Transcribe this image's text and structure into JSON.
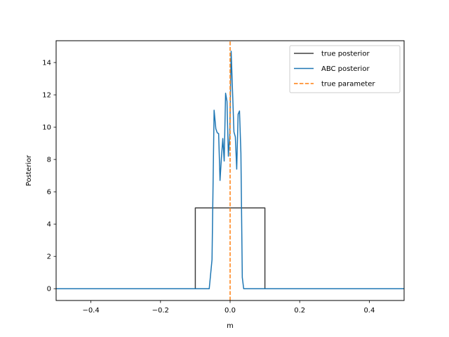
{
  "chart_data": {
    "type": "line",
    "xlabel": "m",
    "ylabel": "Posterior",
    "xlim": [
      -0.5,
      0.5
    ],
    "ylim": [
      -0.73,
      15.35
    ],
    "xticks": [
      -0.4,
      -0.2,
      0.0,
      0.2,
      0.4
    ],
    "xtick_labels": [
      "−0.4",
      "−0.2",
      "0.0",
      "0.2",
      "0.4"
    ],
    "yticks": [
      0,
      2,
      4,
      6,
      8,
      10,
      12,
      14
    ],
    "ytick_labels": [
      "0",
      "2",
      "4",
      "6",
      "8",
      "10",
      "12",
      "14"
    ],
    "grid": false,
    "legend_position": "top-right",
    "series": [
      {
        "name": "true posterior",
        "color": "#404040",
        "style": "solid",
        "x": [
          -0.5,
          -0.1,
          -0.1,
          0.1,
          0.1,
          0.5
        ],
        "y": [
          0,
          0,
          5,
          5,
          0,
          0
        ]
      },
      {
        "name": "ABC posterior",
        "color": "#1f77b4",
        "style": "solid",
        "x": [
          -0.5,
          -0.06,
          -0.052,
          -0.046,
          -0.041,
          -0.037,
          -0.033,
          -0.029,
          -0.025,
          -0.021,
          -0.017,
          -0.013,
          -0.009,
          -0.005,
          -0.001,
          0.003,
          0.007,
          0.011,
          0.015,
          0.019,
          0.023,
          0.027,
          0.031,
          0.035,
          0.039,
          0.043,
          0.047,
          0.052,
          0.058,
          0.5
        ],
        "y": [
          0,
          0,
          1.8,
          11.05,
          9.9,
          9.65,
          9.6,
          6.7,
          8.1,
          9.3,
          7.9,
          12.1,
          11.6,
          8.2,
          9.5,
          14.7,
          12.2,
          9.7,
          9.4,
          7.4,
          10.8,
          11.0,
          8.4,
          0.7,
          0.0,
          0.0,
          0.0,
          0.0,
          0.0,
          0.0
        ]
      },
      {
        "name": "true parameter",
        "color": "#ff7f0e",
        "style": "dashed",
        "x": [
          0.0,
          0.0
        ],
        "y": [
          -0.73,
          15.35
        ]
      }
    ]
  }
}
